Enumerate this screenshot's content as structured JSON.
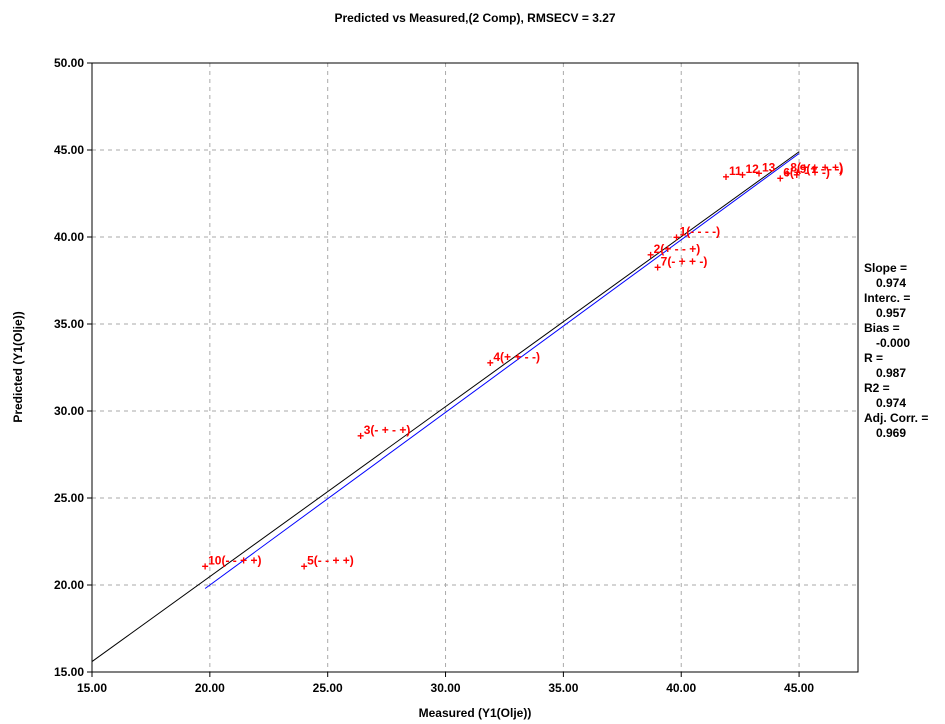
{
  "chart_data": {
    "type": "scatter",
    "title": "Predicted vs Measured,(2 Comp), RMSECV = 3.27",
    "xlabel": "Measured (Y1(Olje))",
    "ylabel": "Predicted (Y1(Olje))",
    "xlim": [
      15,
      47.5
    ],
    "ylim": [
      15,
      50
    ],
    "xticks": [
      "15.00",
      "20.00",
      "25.00",
      "30.00",
      "35.00",
      "40.00",
      "45.00"
    ],
    "yticks": [
      "15.00",
      "20.00",
      "25.00",
      "30.00",
      "35.00",
      "40.00",
      "45.00",
      "50.00"
    ],
    "grid": true,
    "colors": {
      "points": "#ff0000",
      "target_line": "#000000",
      "regression_line": "#0000ff"
    },
    "points": [
      {
        "label": "1(- - - -)",
        "x": 39.8,
        "y": 39.9
      },
      {
        "label": "2(+ - - +)",
        "x": 38.7,
        "y": 38.9
      },
      {
        "label": "7(- + + -)",
        "x": 39.0,
        "y": 38.2
      },
      {
        "label": "3(- + - +)",
        "x": 26.4,
        "y": 28.5
      },
      {
        "label": "4(+ + - -)",
        "x": 31.9,
        "y": 32.7
      },
      {
        "label": "5(- - + +)",
        "x": 24.0,
        "y": 21.0
      },
      {
        "label": "10(- - + +)",
        "x": 19.8,
        "y": 21.0
      },
      {
        "label": "11",
        "x": 41.9,
        "y": 43.4
      },
      {
        "label": "12",
        "x": 42.6,
        "y": 43.5
      },
      {
        "label": "13",
        "x": 43.3,
        "y": 43.6
      },
      {
        "label": "6(+ - + -)",
        "x": 44.2,
        "y": 43.3
      },
      {
        "label": "8(+ + + +)",
        "x": 44.5,
        "y": 43.6
      },
      {
        "label": "9(+ - - -)",
        "x": 44.9,
        "y": 43.5
      }
    ],
    "target_line": {
      "x": [
        15,
        45
      ],
      "y": [
        15.6,
        44.9
      ]
    },
    "regression_line": {
      "x": [
        19.8,
        45
      ],
      "y": [
        19.8,
        44.8
      ]
    },
    "stats": [
      {
        "name": "Slope =",
        "value": "0.974"
      },
      {
        "name": "Interc. =",
        "value": "0.957"
      },
      {
        "name": "Bias =",
        "value": "-0.000"
      },
      {
        "name": "R =",
        "value": "0.987"
      },
      {
        "name": "R2 =",
        "value": "0.974"
      },
      {
        "name": "Adj. Corr. =",
        "value": "0.969"
      }
    ]
  }
}
